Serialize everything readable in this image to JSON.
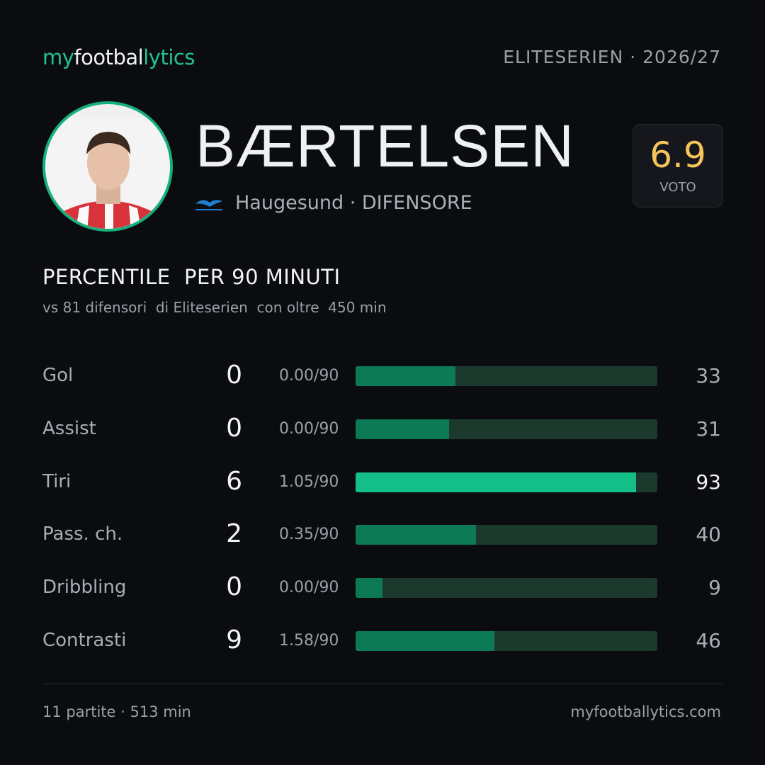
{
  "header": {
    "logo": [
      "my",
      "footbal",
      "lytics"
    ],
    "league": "ELITESERIEN · 2026/27"
  },
  "player": {
    "name": "BÆRTELSEN",
    "club": "Haugesund · DIFENSORE"
  },
  "rating": {
    "value": "6.9",
    "label": "VOTO"
  },
  "section": {
    "title": "PERCENTILE  PER 90 MINUTI",
    "subtitle": "vs 81 difensori  di Eliteserien  con oltre  450 min"
  },
  "stats": {
    "xlim": [
      0,
      100
    ],
    "track_color": "#1b3a2d",
    "rows": [
      {
        "label": "Gol",
        "value": 0,
        "per90": "0.00/90",
        "percentile": 33,
        "color": "#0b7a55"
      },
      {
        "label": "Assist",
        "value": 0,
        "per90": "0.00/90",
        "percentile": 31,
        "color": "#0b7a55"
      },
      {
        "label": "Tiri",
        "value": 6,
        "per90": "1.05/90",
        "percentile": 93,
        "color": "#14bf87"
      },
      {
        "label": "Pass. ch.",
        "value": 2,
        "per90": "0.35/90",
        "percentile": 40,
        "color": "#0b7a55"
      },
      {
        "label": "Dribbling",
        "value": 0,
        "per90": "0.00/90",
        "percentile": 9,
        "color": "#0b7a55"
      },
      {
        "label": "Contrasti",
        "value": 9,
        "per90": "1.58/90",
        "percentile": 46,
        "color": "#0b7a55"
      }
    ]
  },
  "footer": {
    "left": "11 partite · 513 min",
    "right": "myfootballytics.com"
  }
}
